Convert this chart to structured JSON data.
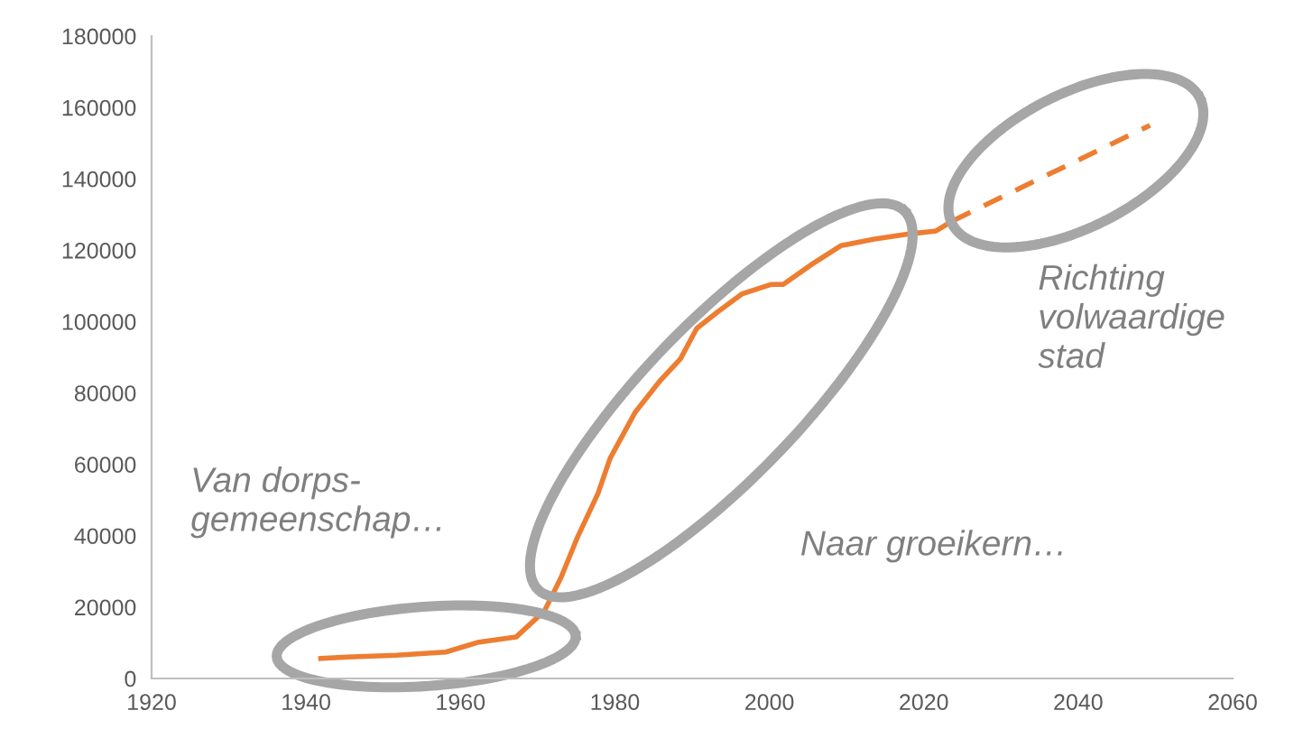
{
  "chart_data": {
    "type": "line",
    "series": [
      {
        "color": "#ed7d31",
        "line_style": "solid",
        "x": [
          1941.9,
          1945.3,
          1951.7,
          1958.1,
          1962.4,
          1967.2,
          1970.9,
          1973.0,
          1975.2,
          1977.8,
          1979.4,
          1982.6,
          1985.8,
          1988.5,
          1990.6,
          1993.3,
          1996.5,
          2000.2,
          2001.8,
          2005.6,
          2009.3,
          2013.6,
          2017.9,
          2021.6,
          2023.7
        ],
        "values": [
          5600,
          6000,
          6500,
          7400,
          10200,
          11600,
          19000,
          28200,
          39800,
          51800,
          61800,
          74500,
          83300,
          89600,
          98100,
          102700,
          107800,
          110400,
          110400,
          116200,
          121300,
          123100,
          124500,
          125400,
          128200
        ]
      },
      {
        "color": "#ed7d31",
        "line_style": "dashed",
        "x": [
          2023.7,
          2049.3
        ],
        "values": [
          128200,
          155000
        ]
      }
    ],
    "xlim": [
      1920,
      2060
    ],
    "xticks": [
      1920,
      1940,
      1960,
      1980,
      2000,
      2020,
      2040,
      2060
    ],
    "ylim": [
      0,
      180000
    ],
    "yticks": [
      0,
      20000,
      40000,
      60000,
      80000,
      100000,
      120000,
      140000,
      160000,
      180000
    ],
    "annotations": [
      "Van dorps-\ngemeenschap…",
      "Naar groeikern…",
      "Richting\nvolwaardige\nstad"
    ],
    "grid": false,
    "legend": false,
    "marker": "none"
  }
}
